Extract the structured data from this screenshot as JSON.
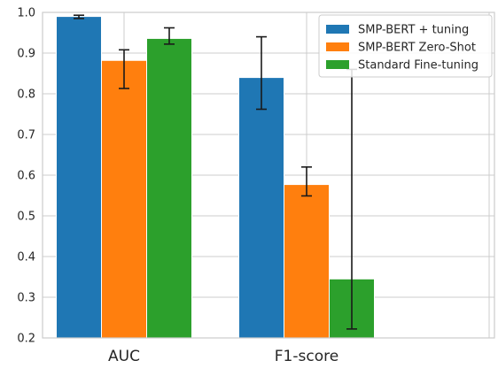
{
  "chart_data": {
    "type": "bar",
    "categories": [
      "AUC",
      "F1-score",
      ""
    ],
    "series": [
      {
        "name": "SMP-BERT + tuning",
        "color": "#1f77b4",
        "values": [
          0.99,
          0.84,
          null
        ],
        "err_low": [
          0.985,
          0.762,
          null
        ],
        "err_high": [
          0.993,
          0.94,
          null
        ]
      },
      {
        "name": "SMP-BERT Zero-Shot",
        "color": "#ff7f0e",
        "values": [
          0.882,
          0.577,
          null
        ],
        "err_low": [
          0.813,
          0.549,
          null
        ],
        "err_high": [
          0.908,
          0.62,
          null
        ]
      },
      {
        "name": "Standard Fine-tuning",
        "color": "#2ca02c",
        "values": [
          0.936,
          0.345,
          null
        ],
        "err_low": [
          0.922,
          0.222,
          null
        ],
        "err_high": [
          0.962,
          0.86,
          null
        ]
      }
    ],
    "title": "",
    "xlabel": "",
    "ylabel": "",
    "ylim": [
      0.2,
      1.0
    ],
    "yticks": [
      "0.2",
      "0.3",
      "0.4",
      "0.5",
      "0.6",
      "0.7",
      "0.8",
      "0.9",
      "1.0"
    ],
    "grid": true,
    "legend_position": "top-right"
  }
}
